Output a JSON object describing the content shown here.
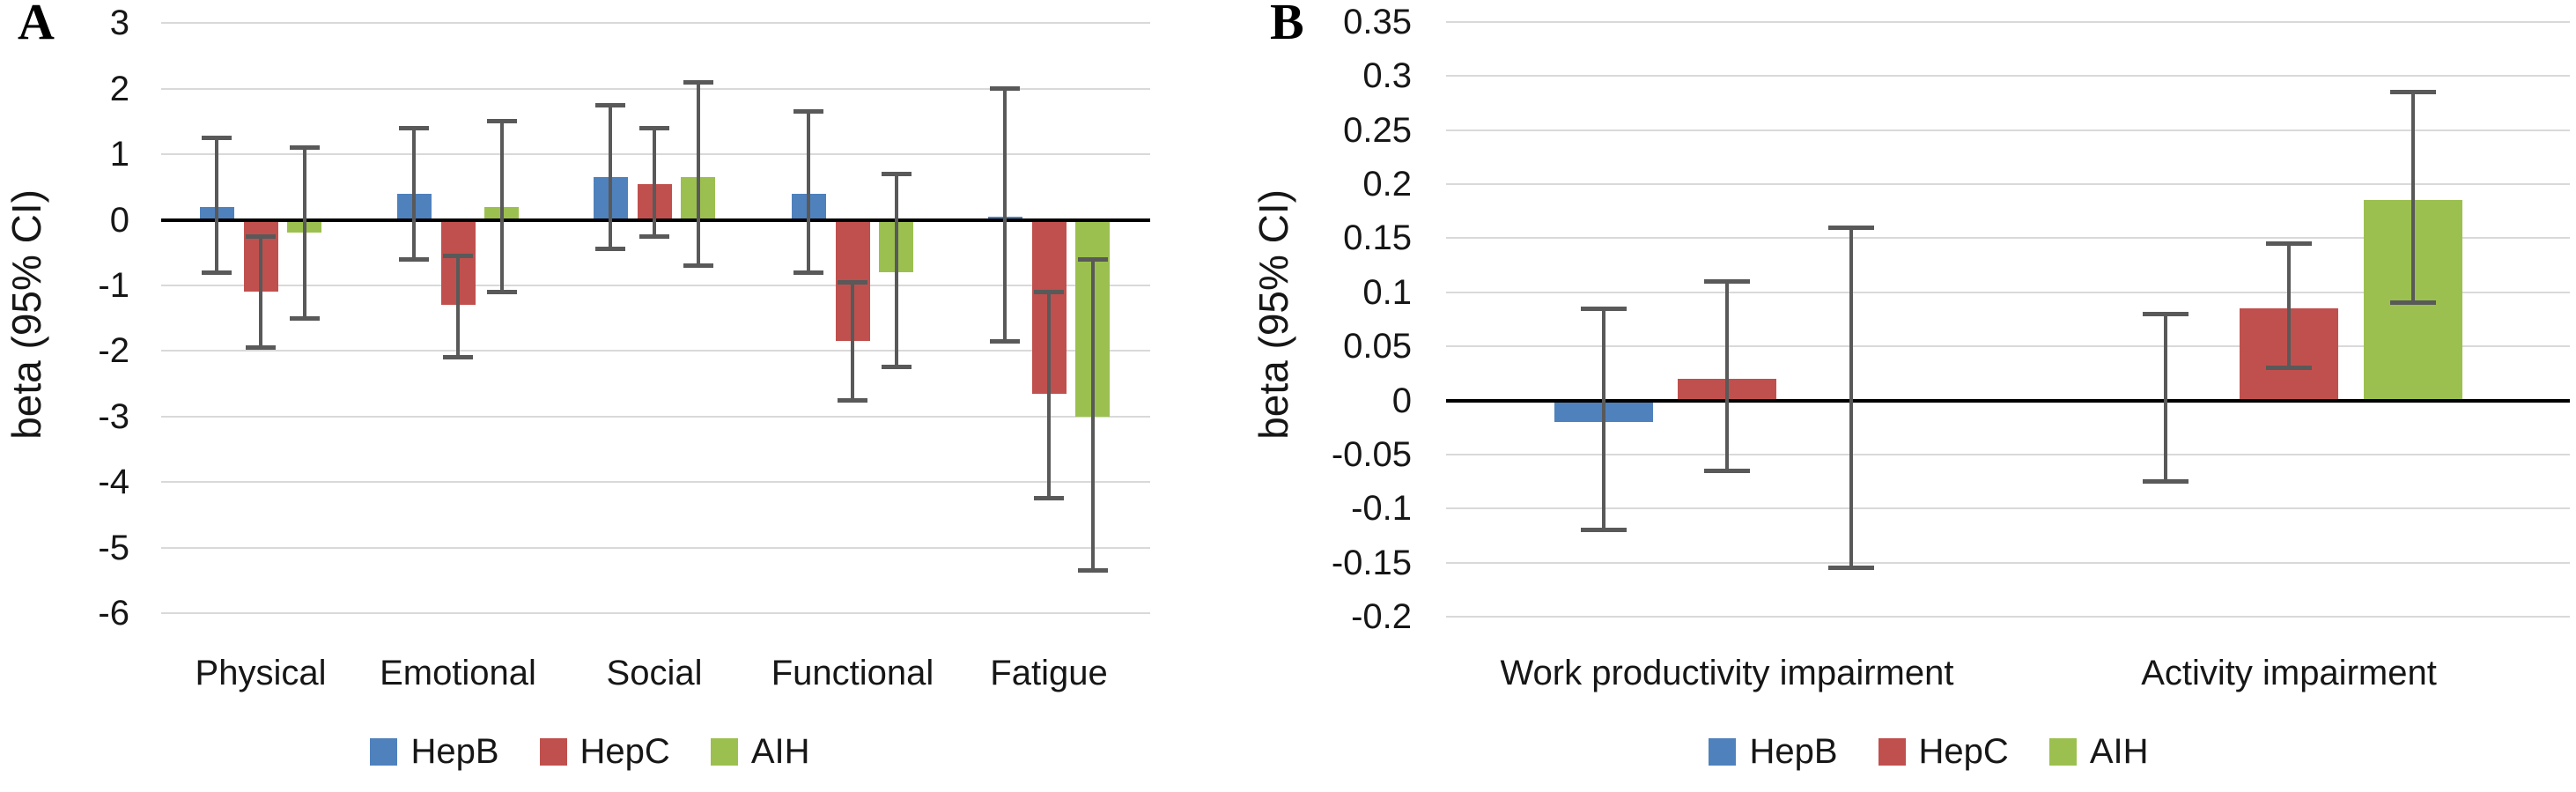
{
  "chart_data": [
    {
      "type": "bar",
      "panel_label": "A",
      "title": "",
      "ylabel": "beta (95% CI)",
      "categories": [
        "Physical",
        "Emotional",
        "Social",
        "Functional",
        "Fatigue"
      ],
      "series": [
        {
          "name": "HepB",
          "color": "#4F81BD",
          "values": [
            0.2,
            0.4,
            0.65,
            0.4,
            0.05
          ],
          "ci_low": [
            -0.8,
            -0.6,
            -0.45,
            -0.8,
            -1.85
          ],
          "ci_high": [
            1.25,
            1.4,
            1.75,
            1.65,
            2.0
          ]
        },
        {
          "name": "HepC",
          "color": "#C0504D",
          "values": [
            -1.1,
            -1.3,
            0.55,
            -1.85,
            -2.65
          ],
          "ci_low": [
            -1.95,
            -2.1,
            -0.25,
            -2.75,
            -4.25
          ],
          "ci_high": [
            -0.25,
            -0.55,
            1.4,
            -0.95,
            -1.1
          ]
        },
        {
          "name": "AIH",
          "color": "#9CC04F",
          "values": [
            -0.2,
            0.2,
            0.65,
            -0.8,
            -3.0
          ],
          "ci_low": [
            -1.5,
            -1.1,
            -0.7,
            -2.25,
            -5.35
          ],
          "ci_high": [
            1.1,
            1.5,
            2.1,
            0.7,
            -0.6
          ]
        }
      ],
      "ylim": [
        -6,
        3
      ],
      "yticks": [
        3,
        2,
        1,
        0,
        -1,
        -2,
        -3,
        -4,
        -5,
        -6
      ],
      "ytick_labels": [
        "3",
        "2",
        "1",
        "0",
        "-1",
        "-2",
        "-3",
        "-4",
        "-5",
        "-6"
      ],
      "grid": true,
      "error_bars": true,
      "legend_position": "bottom",
      "legend": [
        "HepB",
        "HepC",
        "AIH"
      ]
    },
    {
      "type": "bar",
      "panel_label": "B",
      "title": "",
      "ylabel": "beta (95% CI)",
      "categories": [
        "Work productivity impairment",
        "Activity impairment"
      ],
      "series": [
        {
          "name": "HepB",
          "color": "#4F81BD",
          "values": [
            -0.02,
            0.0
          ],
          "ci_low": [
            -0.12,
            -0.075
          ],
          "ci_high": [
            0.085,
            0.08
          ]
        },
        {
          "name": "HepC",
          "color": "#C0504D",
          "values": [
            0.02,
            0.085
          ],
          "ci_low": [
            -0.065,
            0.03
          ],
          "ci_high": [
            0.11,
            0.145
          ]
        },
        {
          "name": "AIH",
          "color": "#9CC04F",
          "values": [
            0.0,
            0.185
          ],
          "ci_low": [
            -0.155,
            0.09
          ],
          "ci_high": [
            0.16,
            0.285
          ]
        }
      ],
      "ylim": [
        -0.2,
        0.35
      ],
      "yticks": [
        0.35,
        0.3,
        0.25,
        0.2,
        0.15,
        0.1,
        0.05,
        0,
        -0.05,
        -0.1,
        -0.15,
        -0.2
      ],
      "ytick_labels": [
        "0.35",
        "0.3",
        "0.25",
        "0.2",
        "0.15",
        "0.1",
        "0.05",
        "0",
        "-0.05",
        "-0.1",
        "-0.15",
        "-0.2"
      ],
      "grid": true,
      "error_bars": true,
      "legend_position": "bottom",
      "legend": [
        "HepB",
        "HepC",
        "AIH"
      ]
    }
  ],
  "colors": {
    "hepb": "#4F81BD",
    "hepc": "#C0504D",
    "aih": "#9CC04F",
    "error_bar": "#595959",
    "gridline": "#D9D9D9",
    "zero_line": "#000000",
    "text": "#1F1F1F",
    "background": "#FFFFFF"
  }
}
